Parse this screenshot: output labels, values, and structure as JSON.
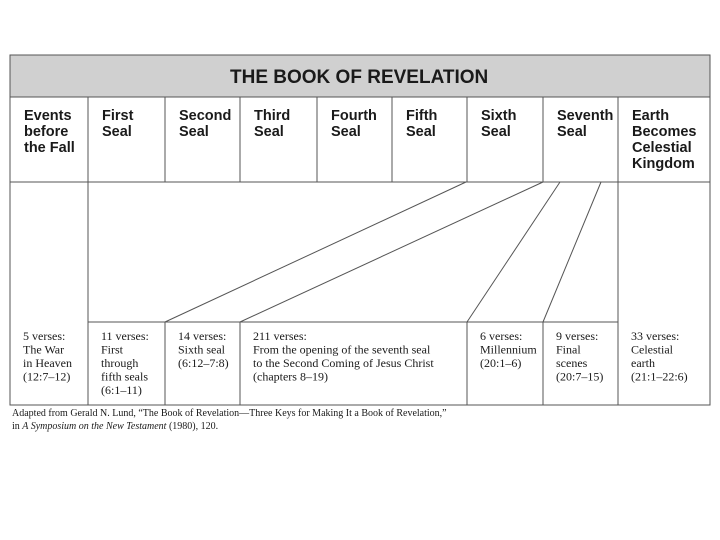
{
  "title": "THE BOOK OF REVELATION",
  "columns": [
    [
      "Events",
      "before",
      "the Fall"
    ],
    [
      "First",
      "Seal"
    ],
    [
      "Second",
      "Seal"
    ],
    [
      "Third",
      "Seal"
    ],
    [
      "Fourth",
      "Seal"
    ],
    [
      "Fifth",
      "Seal"
    ],
    [
      "Sixth",
      "Seal"
    ],
    [
      "Seventh",
      "Seal"
    ],
    [
      "Earth",
      "Becomes",
      "Celestial",
      "Kingdom"
    ]
  ],
  "segments": [
    [
      "5 verses:",
      "The War",
      "in Heaven",
      "(12:7–12)"
    ],
    [
      "11 verses:",
      "First",
      "through",
      "fifth seals",
      "(6:1–11)"
    ],
    [
      "14 verses:",
      "Sixth seal",
      "(6:12–7:8)"
    ],
    [
      "211 verses:",
      "From the opening of the seventh seal",
      "to the Second Coming of Jesus Christ",
      "(chapters 8–19)"
    ],
    [
      "6 verses:",
      "Millennium",
      "(20:1–6)"
    ],
    [
      "9 verses:",
      "Final",
      "scenes",
      "(20:7–15)"
    ],
    [
      "33 verses:",
      "Celestial",
      "earth",
      "(21:1–22:6)"
    ]
  ],
  "caption": {
    "line1": "Adapted from Gerald N. Lund, “The Book of Revelation—Three Keys for Making It a Book of Revelation,”",
    "line2": [
      "in ",
      "A Symposium on the New Testament",
      " (1980), 120."
    ]
  }
}
